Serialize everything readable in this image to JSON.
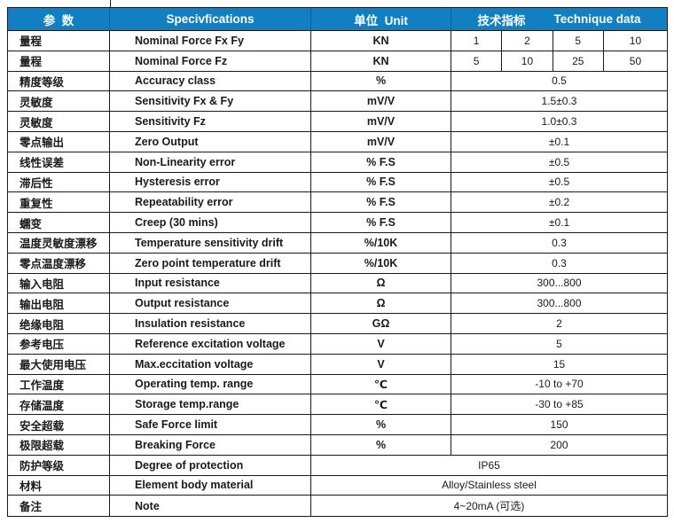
{
  "table": {
    "header": {
      "col1": "参  数",
      "col2": "Specivfications",
      "col3": "单位  Unit",
      "col4_cn": "技术指标",
      "col4_en": "Technique data"
    },
    "rows": [
      {
        "cn": "量程",
        "en": "Nominal Force Fx Fy",
        "unit": "KN",
        "values": [
          "1",
          "2",
          "5",
          "10"
        ]
      },
      {
        "cn": "量程",
        "en": "Nominal Force Fz",
        "unit": "KN",
        "values": [
          "5",
          "10",
          "25",
          "50"
        ]
      },
      {
        "cn": "精度等级",
        "en": "Accuracy class",
        "unit": "%",
        "value": "0.5"
      },
      {
        "cn": "灵敏度",
        "en": "Sensitivity Fx & Fy",
        "unit": "mV/V",
        "value": "1.5±0.3"
      },
      {
        "cn": "灵敏度",
        "en": "Sensitivity Fz",
        "unit": "mV/V",
        "value": "1.0±0.3"
      },
      {
        "cn": "零点输出",
        "en": "Zero Output",
        "unit": "mV/V",
        "value": "±0.1"
      },
      {
        "cn": "线性误差",
        "en": "Non-Linearity error",
        "unit": "% F.S",
        "value": "±0.5"
      },
      {
        "cn": "滞后性",
        "en": "Hysteresis error",
        "unit": "% F.S",
        "value": "±0.5"
      },
      {
        "cn": "重复性",
        "en": "Repeatability error",
        "unit": "% F.S",
        "value": "±0.2"
      },
      {
        "cn": "蠕变",
        "en": "Creep (30 mins)",
        "unit": "% F.S",
        "value": "±0.1"
      },
      {
        "cn": "温度灵敏度漂移",
        "en": "Temperature sensitivity drift",
        "unit": "%/10K",
        "value": "0.3"
      },
      {
        "cn": "零点温度漂移",
        "en": "Zero point temperature drift",
        "unit": "%/10K",
        "value": "0.3"
      },
      {
        "cn": "输入电阻",
        "en": "Input resistance",
        "unit": "Ω",
        "value": "300...800"
      },
      {
        "cn": "输出电阻",
        "en": "Output resistance",
        "unit": "Ω",
        "value": "300...800"
      },
      {
        "cn": "绝缘电阻",
        "en": "Insulation resistance",
        "unit": "GΩ",
        "value": "2"
      },
      {
        "cn": "参考电压",
        "en": "Reference excitation voltage",
        "unit": "V",
        "value": "5"
      },
      {
        "cn": "最大使用电压",
        "en": "Max.eccitation voltage",
        "unit": "V",
        "value": "15"
      },
      {
        "cn": "工作温度",
        "en": "Operating temp. range",
        "unit": "℃",
        "value": "-10 to +70"
      },
      {
        "cn": "存储温度",
        "en": "Storage temp.range",
        "unit": "℃",
        "value": "-30 to +85"
      },
      {
        "cn": "安全超载",
        "en": "Safe Force limit",
        "unit": "%",
        "value": "150"
      },
      {
        "cn": "极限超载",
        "en": "Breaking Force",
        "unit": "%",
        "value": "200"
      },
      {
        "cn": "防护等级",
        "en": "Degree of protection",
        "merged": true,
        "value": "IP65"
      },
      {
        "cn": "材料",
        "en": "Element body material",
        "merged": true,
        "value": "Alloy/Stainless steel"
      },
      {
        "cn": "备注",
        "en": "Note",
        "merged": true,
        "value": "4~20mA (可选)"
      }
    ]
  }
}
